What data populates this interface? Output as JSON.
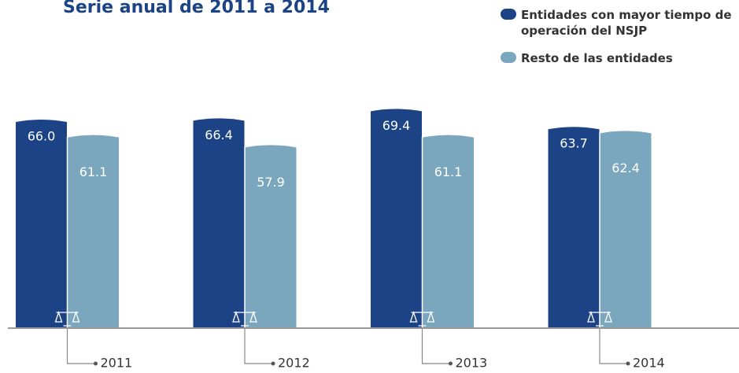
{
  "chart_data": {
    "type": "bar",
    "title": "Serie anual de 2011 a 2014",
    "categories": [
      "2011",
      "2012",
      "2013",
      "2014"
    ],
    "series": [
      {
        "name": "Entidades con mayor tiempo de operación del NSJP",
        "color": "#1b4385",
        "values": [
          66.0,
          66.4,
          69.4,
          63.7
        ],
        "value_labels": [
          "66.0",
          "66.4",
          "69.4",
          "63.7"
        ]
      },
      {
        "name": "Resto de las entidades",
        "color": "#7aa7bd",
        "values": [
          61.1,
          57.9,
          61.1,
          62.4
        ],
        "value_labels": [
          "61.1",
          "57.9",
          "61.1",
          "62.4"
        ]
      }
    ],
    "legend": "top-right"
  }
}
